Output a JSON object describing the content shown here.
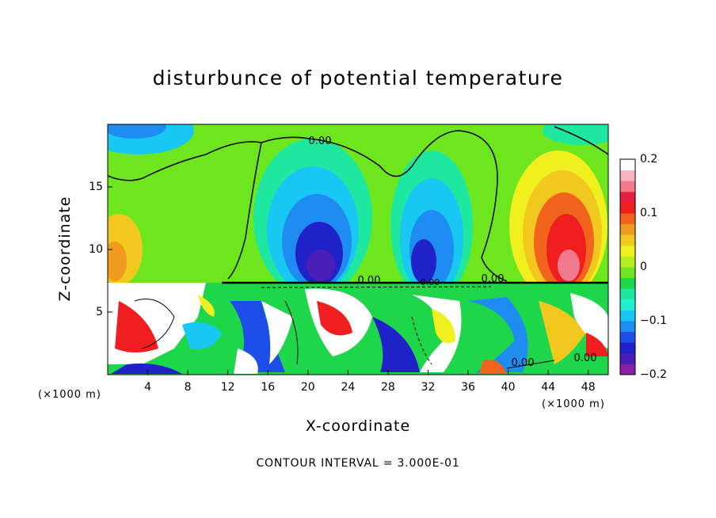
{
  "chart_data": {
    "type": "heatmap",
    "title": "disturbunce of potential temperature",
    "xlabel": "X-coordinate",
    "ylabel": "Z-coordinate",
    "x_unit_label": "(×1000 m)",
    "x_ticks": [
      4,
      8,
      12,
      16,
      20,
      24,
      28,
      32,
      36,
      40,
      44,
      48
    ],
    "y_ticks": [
      5,
      10,
      15
    ],
    "xlim": [
      0,
      50
    ],
    "ylim": [
      0,
      20
    ],
    "colorbar": {
      "ticks": [
        0.2,
        0.1,
        0,
        -0.1,
        -0.2
      ],
      "tick_labels": [
        "0.2",
        "0.1",
        "0",
        "−0.1",
        "−0.2"
      ],
      "range": [
        -0.2,
        0.2
      ],
      "colors": [
        "#8a1fa6",
        "#4a1fb8",
        "#1e22c8",
        "#1e4ee8",
        "#1e8cf0",
        "#19c8f2",
        "#1ef0d2",
        "#1ee8a0",
        "#1ed64a",
        "#6ee61e",
        "#b4f01e",
        "#f0f01e",
        "#f0c81e",
        "#f09a1e",
        "#f0641e",
        "#f01e1e",
        "#e61e40",
        "#f07a8c",
        "#f8b4be",
        "#ffffff"
      ]
    },
    "contour_labels": [
      "0.00",
      "0.00",
      "0.00",
      "0.00",
      "0.00",
      "0.00"
    ],
    "footnote": "CONTOUR INTERVAL = 3.000E-01"
  }
}
